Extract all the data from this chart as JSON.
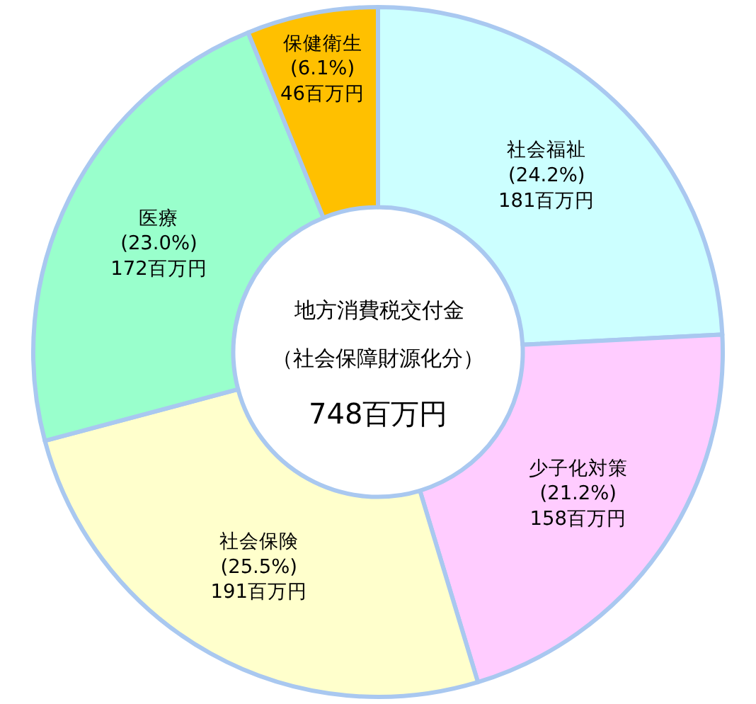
{
  "chart_data": {
    "type": "donut",
    "categories": [
      "社会福祉",
      "少子化対策",
      "社会保険",
      "医療",
      "保健衛生"
    ],
    "values": [
      181,
      158,
      191,
      172,
      46
    ],
    "value_labels": [
      "(24.2%)\n181百万円",
      "(21.2%)\n158百万円",
      "(25.5%)\n191百万円",
      "(23.0%)\n172百万円",
      "(6.1%)\n46百万円"
    ],
    "colors": [
      "#ccffff",
      "#ffccff",
      "#ffffcc",
      "#99ffcc",
      "#ffc000"
    ],
    "annotations": [
      "地方消費税交付金",
      "（社会保障財源化分）",
      "748百万円"
    ],
    "legend": false
  }
}
